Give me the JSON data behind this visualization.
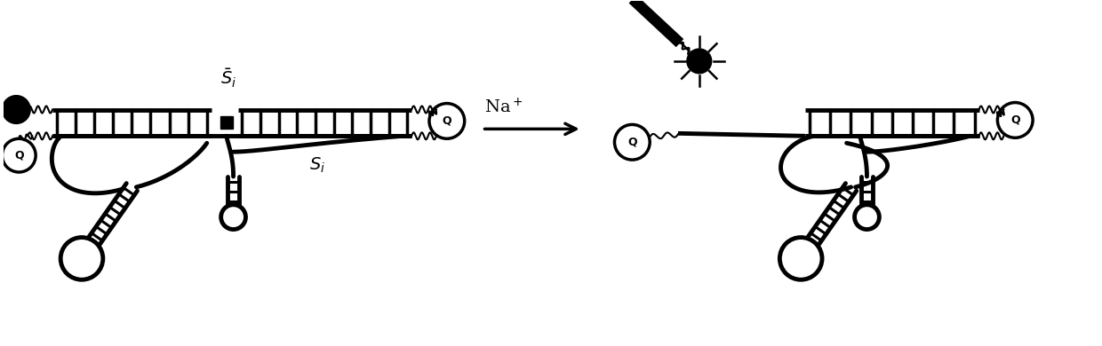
{
  "bg_color": "#ffffff",
  "line_color": "#000000",
  "fig_width": 12.4,
  "fig_height": 3.9,
  "dpi": 100,
  "Q_label": "Q",
  "S_bar_label": "$\\bar{S}_i$",
  "S_label": "$S_i$",
  "Na_label": "Na$^+$"
}
